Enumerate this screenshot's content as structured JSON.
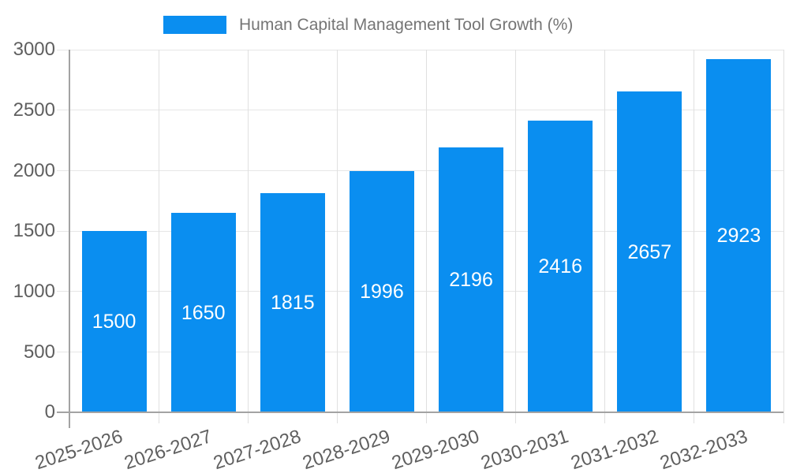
{
  "legend": {
    "label": "Human Capital Management Tool Growth (%)"
  },
  "colors": {
    "bar": "#0a8ef0",
    "grid": "#e6e6e6",
    "tick": "#e0e0e0",
    "axis": "#a3a3a3",
    "tick_text": "#5f5f5f",
    "title_text": "#757575",
    "value_text": "#ffffff"
  },
  "chart_data": {
    "type": "bar",
    "title": "Human Capital Management Tool Growth (%)",
    "categories": [
      "2025-2026",
      "2026-2027",
      "2027-2028",
      "2028-2029",
      "2029-2030",
      "2030-2031",
      "2031-2032",
      "2032-2033"
    ],
    "values": [
      1500,
      1650,
      1815,
      1996,
      2196,
      2416,
      2657,
      2923
    ],
    "xlabel": "",
    "ylabel": "",
    "ylim": [
      0,
      3000
    ],
    "yticks": [
      0,
      500,
      1000,
      1500,
      2000,
      2500,
      3000
    ],
    "grid": true,
    "legend_position": "top",
    "bar_value_labels": "centered inside bars, white"
  }
}
